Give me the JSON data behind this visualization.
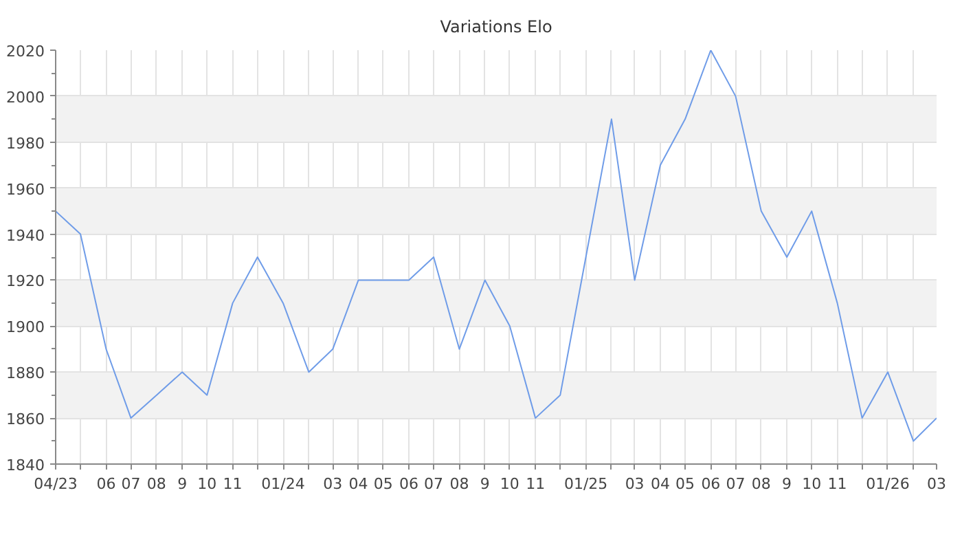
{
  "chart_data": {
    "type": "line",
    "title": "Variations Elo",
    "x": [
      "2023-04",
      "2023-05",
      "2023-06",
      "2023-07",
      "2023-08",
      "2023-09",
      "2023-10",
      "2023-11",
      "2023-12",
      "2024-01",
      "2024-02",
      "2024-03",
      "2024-04",
      "2024-05",
      "2024-06",
      "2024-07",
      "2024-08",
      "2024-09",
      "2024-10",
      "2024-11",
      "2024-12",
      "2025-01",
      "2025-02",
      "2025-03",
      "2025-04",
      "2025-05",
      "2025-06",
      "2025-07",
      "2025-08",
      "2025-09",
      "2025-10",
      "2025-11",
      "2025-12",
      "2026-01",
      "2026-02",
      "2026-03"
    ],
    "series": [
      {
        "color": "#6f9ce8",
        "values": [
          1950,
          1940,
          1890,
          1860,
          1870,
          1880,
          1870,
          1910,
          1930,
          1910,
          1880,
          1890,
          1920,
          1920,
          1920,
          1930,
          1890,
          1920,
          1900,
          1860,
          1870,
          1930,
          1990,
          1920,
          1970,
          1990,
          2020,
          2000,
          1950,
          1930,
          1950,
          1910,
          1860,
          1880,
          1850,
          1860
        ]
      }
    ],
    "xlim": [
      "2023-04",
      "2026-03"
    ],
    "xticks": [
      {
        "value": "2023-04",
        "label": "04/23"
      },
      {
        "value": "2023-05",
        "label": null
      },
      {
        "value": "2023-06",
        "label": "06"
      },
      {
        "value": "2023-07",
        "label": "07"
      },
      {
        "value": "2023-08",
        "label": "08"
      },
      {
        "value": "2023-09",
        "label": "9"
      },
      {
        "value": "2023-10",
        "label": "10"
      },
      {
        "value": "2023-11",
        "label": "11"
      },
      {
        "value": "2023-12",
        "label": null
      },
      {
        "value": "2024-01",
        "label": "01/24"
      },
      {
        "value": "2024-02",
        "label": null
      },
      {
        "value": "2024-03",
        "label": "03"
      },
      {
        "value": "2024-04",
        "label": "04"
      },
      {
        "value": "2024-05",
        "label": "05"
      },
      {
        "value": "2024-06",
        "label": "06"
      },
      {
        "value": "2024-07",
        "label": "07"
      },
      {
        "value": "2024-08",
        "label": "08"
      },
      {
        "value": "2024-09",
        "label": "9"
      },
      {
        "value": "2024-10",
        "label": "10"
      },
      {
        "value": "2024-11",
        "label": "11"
      },
      {
        "value": "2024-12",
        "label": null
      },
      {
        "value": "2025-01",
        "label": "01/25"
      },
      {
        "value": "2025-02",
        "label": null
      },
      {
        "value": "2025-03",
        "label": "03"
      },
      {
        "value": "2025-04",
        "label": "04"
      },
      {
        "value": "2025-05",
        "label": "05"
      },
      {
        "value": "2025-06",
        "label": "06"
      },
      {
        "value": "2025-07",
        "label": "07"
      },
      {
        "value": "2025-08",
        "label": "08"
      },
      {
        "value": "2025-09",
        "label": "9"
      },
      {
        "value": "2025-10",
        "label": "10"
      },
      {
        "value": "2025-11",
        "label": "11"
      },
      {
        "value": "2025-12",
        "label": null
      },
      {
        "value": "2026-01",
        "label": "01/26"
      },
      {
        "value": "2026-02",
        "label": null
      },
      {
        "value": "2026-03",
        "label": "03"
      }
    ],
    "ylim": [
      1840,
      2020
    ],
    "yticks": [
      1840,
      1860,
      1880,
      1900,
      1920,
      1940,
      1960,
      1980,
      2000,
      2020
    ],
    "grid": true,
    "line_style": "solid"
  }
}
